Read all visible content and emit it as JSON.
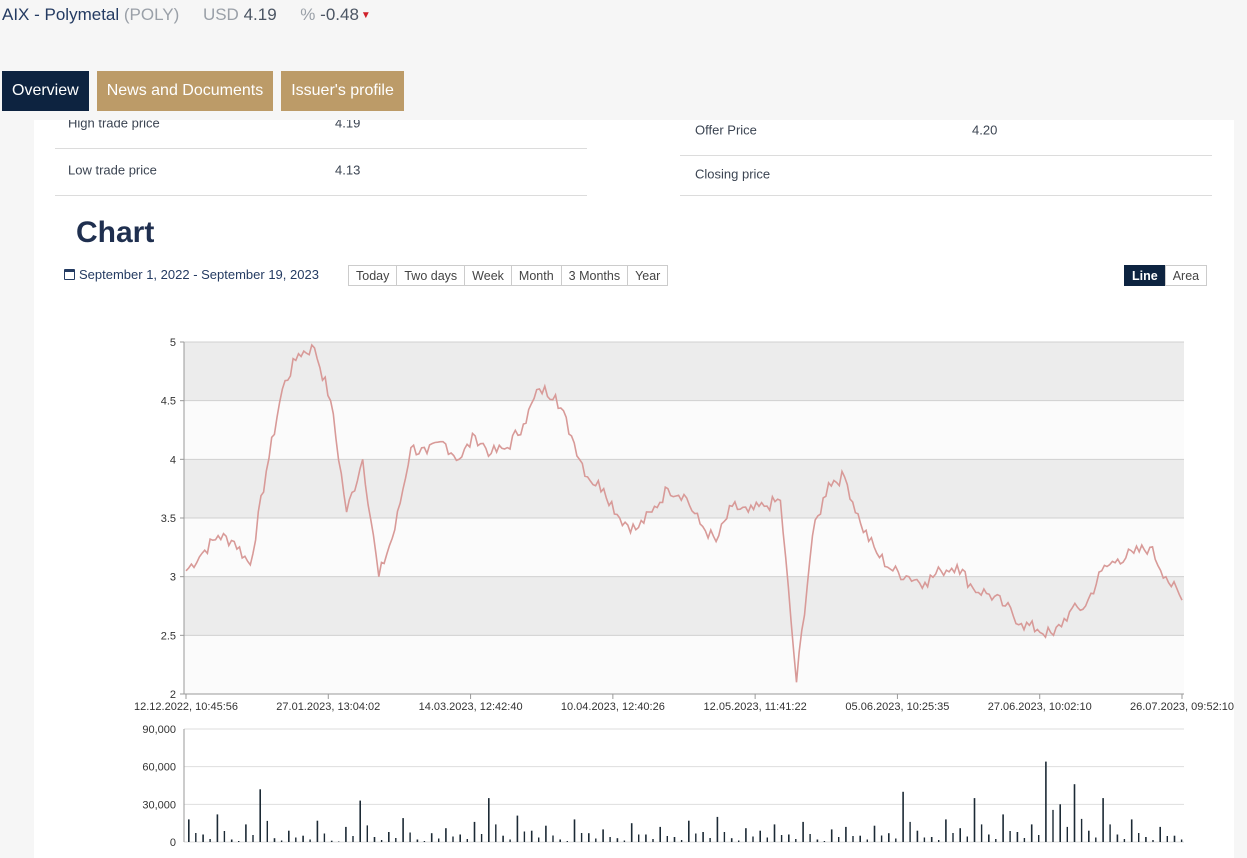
{
  "ticker": {
    "name": "AIX - Polymetal",
    "code": "(POLY)",
    "currency": "USD",
    "price": "4.19",
    "pct_label": "%",
    "change": "-0.48",
    "change_icon": "caret-down-icon",
    "change_color": "#d0202a"
  },
  "tabs": [
    {
      "label": "Overview",
      "active": true
    },
    {
      "label": "News and Documents",
      "active": false
    },
    {
      "label": "Issuer's profile",
      "active": false
    }
  ],
  "stats": {
    "high_label": "High trade price",
    "high_value": "4.19",
    "low_label": "Low trade price",
    "low_value": "4.13",
    "offer_label": "Offer Price",
    "offer_value": "4.20",
    "closing_label": "Closing price",
    "closing_value": ""
  },
  "chart_section": {
    "title": "Chart",
    "date_range": "September 1, 2022 - September 19, 2023",
    "calendar_icon": "calendar-icon",
    "periods": [
      "Today",
      "Two days",
      "Week",
      "Month",
      "3 Months",
      "Year"
    ],
    "views": [
      "Line",
      "Area"
    ],
    "active_view": "Line"
  },
  "colors": {
    "accent_dark": "#0d2340",
    "tab_gold": "#bc9b68",
    "price_line": "#d89a98",
    "volume_bars": "#1c2a35"
  },
  "chart_data": [
    {
      "type": "line",
      "title": "",
      "x_ticks": [
        "12.12.2022, 10:45:56",
        "27.01.2023, 13:04:02",
        "14.03.2023, 12:42:40",
        "10.04.2023, 12:40:26",
        "12.05.2023, 11:41:22",
        "05.06.2023, 10:25:35",
        "27.06.2023, 10:02:10",
        "26.07.2023, 09:52:10"
      ],
      "y_ticks": [
        "5",
        "4.5",
        "4",
        "3.5",
        "3",
        "2.5",
        "2"
      ],
      "ylim": [
        2,
        5
      ],
      "grid": true,
      "series": [
        {
          "values": [
            3.05,
            3.2,
            3.35,
            3.3,
            3.1,
            3.9,
            4.6,
            4.9,
            4.95,
            4.5,
            3.55,
            4.0,
            3.0,
            3.4,
            4.1,
            4.05,
            4.15,
            4.0,
            4.2,
            4.05,
            4.1,
            4.3,
            4.6,
            4.55,
            4.2,
            3.85,
            3.75,
            3.5,
            3.4,
            3.55,
            3.75,
            3.7,
            3.45,
            3.3,
            3.6,
            3.55,
            3.6,
            3.65,
            2.1,
            3.35,
            3.8,
            3.85,
            3.45,
            3.2,
            3.05,
            3.0,
            2.95,
            3.05,
            3.1,
            2.9,
            2.85,
            2.75,
            2.6,
            2.55,
            2.5,
            2.7,
            2.75,
            3.05,
            3.15,
            3.2,
            3.25,
            3.0,
            2.8
          ]
        }
      ]
    },
    {
      "type": "bar",
      "title": "",
      "y_ticks": [
        "90,000",
        "60,000",
        "30,000",
        "0"
      ],
      "ylim": [
        0,
        90000
      ],
      "values": [
        18000,
        6000,
        22000,
        2000,
        14000,
        42000,
        3000,
        9000,
        5000,
        17000,
        1000,
        12000,
        33000,
        4000,
        8000,
        19000,
        2000,
        7000,
        11000,
        6000,
        16000,
        35000,
        5000,
        21000,
        9000,
        13000,
        2000,
        18000,
        7000,
        10000,
        3000,
        15000,
        6000,
        12000,
        4000,
        17000,
        8000,
        20000,
        3000,
        11000,
        9000,
        14000,
        6000,
        16000,
        2000,
        10000,
        12000,
        5000,
        13000,
        7000,
        40000,
        9000,
        4000,
        18000,
        11000,
        35000,
        6000,
        22000,
        8000,
        14000,
        64000,
        30000,
        46000,
        9000,
        35000,
        6000,
        18000,
        4000,
        12000,
        5000
      ]
    }
  ]
}
